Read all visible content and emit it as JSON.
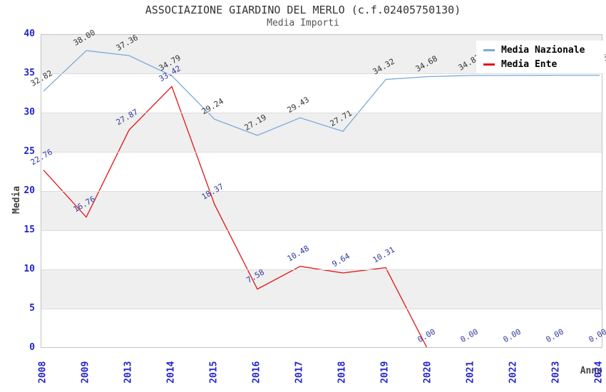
{
  "title": "ASSOCIAZIONE GIARDINO DEL MERLO (c.f.02405750130)",
  "colors": {
    "nazionale_line": "#7aa9dc",
    "ente_line": "#e01414",
    "tick_label": "#2424cc",
    "nazionale_value_label": "#333333",
    "ente_value_label": "#333a9e",
    "band": "#efefef",
    "gridline": "#dcdcdc",
    "plot_border": "#c3c3c3",
    "legend_background": "#ffffff"
  },
  "chart_data": {
    "type": "line",
    "title": "ASSOCIAZIONE GIARDINO DEL MERLO (c.f.02405750130)",
    "subtitle": "Media Importi",
    "xlabel": "Anno",
    "ylabel": "Media",
    "ylim": [
      0,
      40
    ],
    "ytick_step": 5,
    "yticks": [
      0,
      5,
      10,
      15,
      20,
      25,
      30,
      35,
      40
    ],
    "grid": "horizontal-bands",
    "legend_position": "top-right-inside",
    "categories": [
      "2008",
      "2009",
      "2013",
      "2014",
      "2015",
      "2016",
      "2017",
      "2018",
      "2019",
      "2020",
      "2021",
      "2022",
      "2023",
      "2024"
    ],
    "point_labels_rotation_deg": -30,
    "series": [
      {
        "name": "Media Nazionale",
        "color": "#7aa9dc",
        "label_color": "#333333",
        "values": [
          32.82,
          38.0,
          37.36,
          34.79,
          29.24,
          27.19,
          29.43,
          27.71,
          34.32,
          34.68,
          34.83,
          34.84,
          34.85,
          34.85
        ]
      },
      {
        "name": "Media Ente",
        "color": "#e01414",
        "label_color": "#333a9e",
        "values": [
          22.76,
          16.76,
          27.87,
          33.42,
          18.37,
          7.58,
          10.48,
          9.64,
          10.31,
          0.0,
          0.0,
          0.0,
          0.0,
          0.0
        ]
      }
    ]
  }
}
